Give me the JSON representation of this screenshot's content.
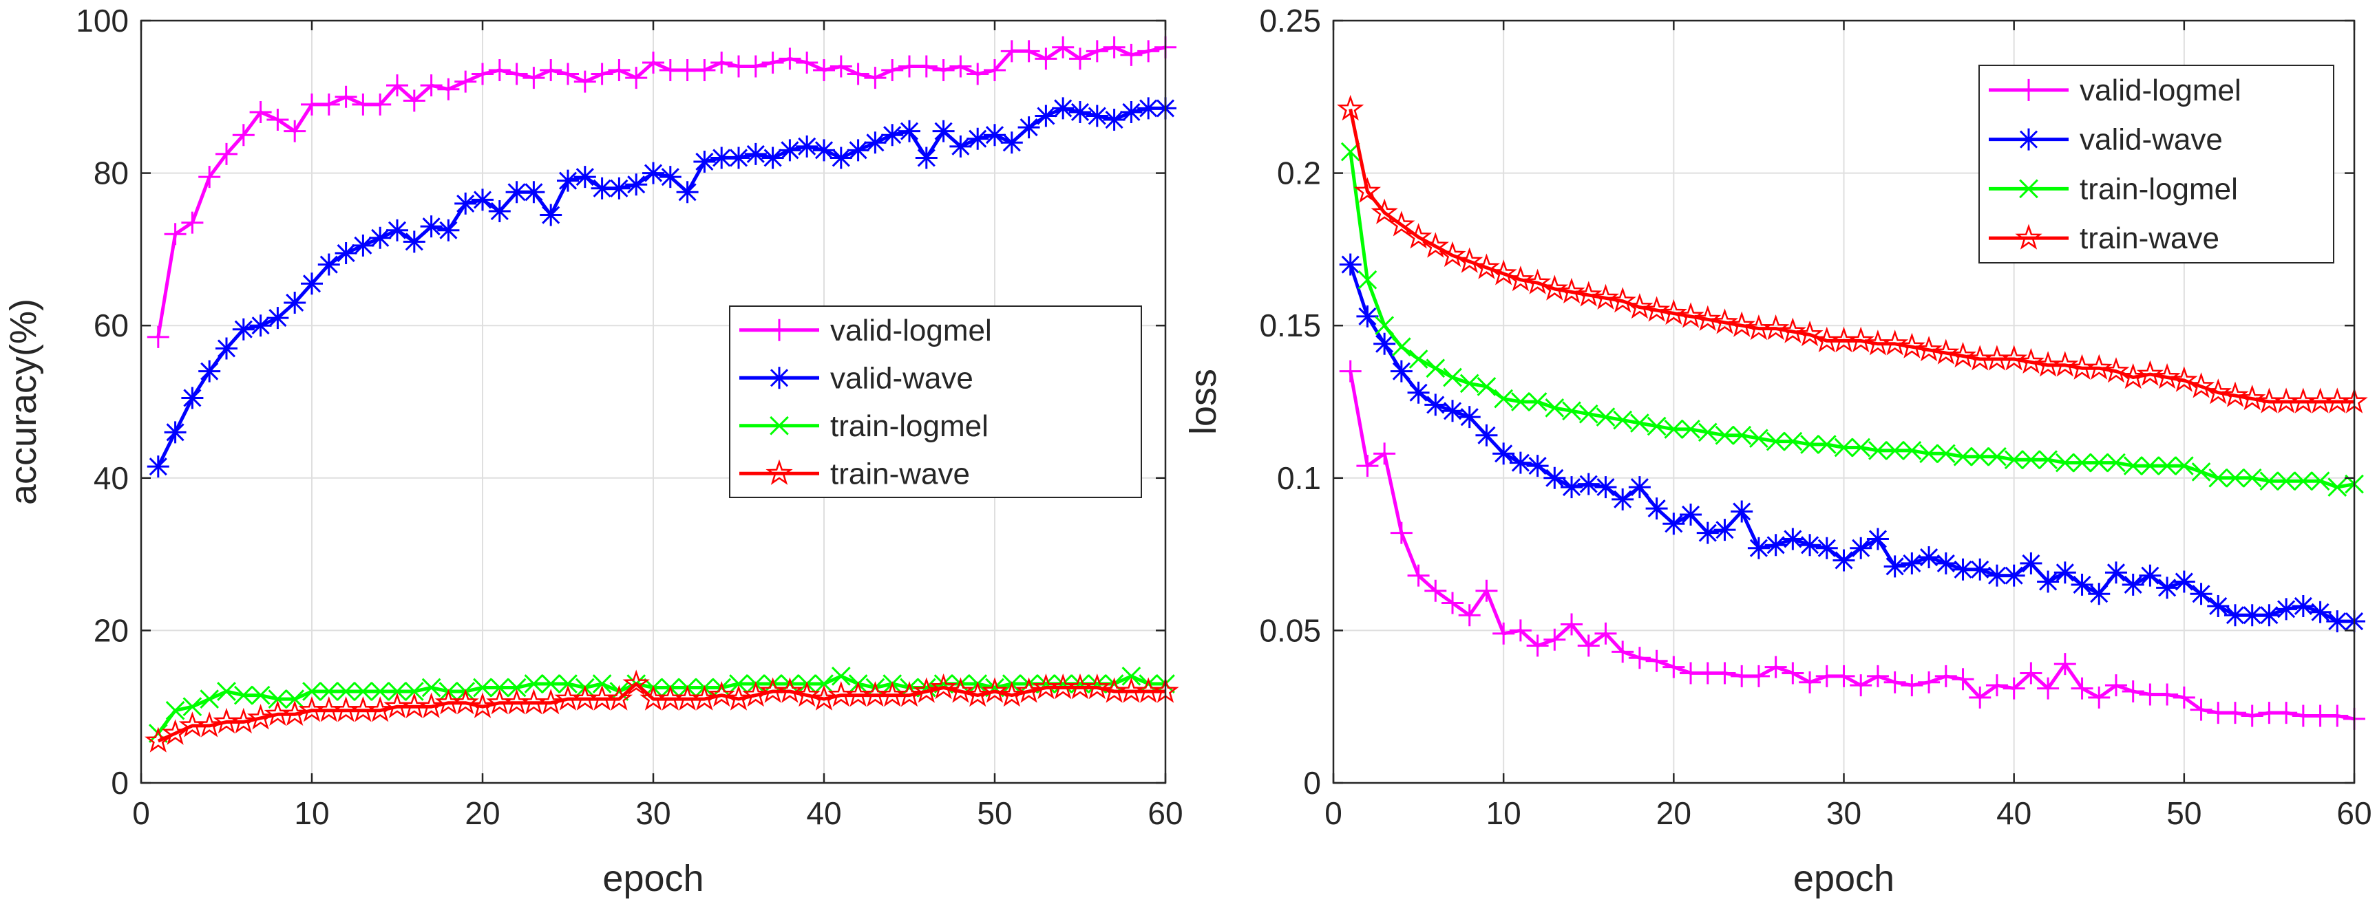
{
  "chart_data": [
    {
      "type": "line",
      "title": "",
      "xlabel": "epoch",
      "ylabel": "accuracy(%)",
      "xlim": [
        0,
        60
      ],
      "ylim": [
        0,
        100
      ],
      "xticks": [
        0,
        10,
        20,
        30,
        40,
        50,
        60
      ],
      "yticks": [
        0,
        20,
        40,
        60,
        80,
        100
      ],
      "xtick_labels": [
        "0",
        "10",
        "20",
        "30",
        "40",
        "50",
        "60"
      ],
      "ytick_labels": [
        "0",
        "20",
        "40",
        "60",
        "80",
        "100"
      ],
      "grid": true,
      "legend_position": "center-right",
      "x": [
        1,
        2,
        3,
        4,
        5,
        6,
        7,
        8,
        9,
        10,
        11,
        12,
        13,
        14,
        15,
        16,
        17,
        18,
        19,
        20,
        21,
        22,
        23,
        24,
        25,
        26,
        27,
        28,
        29,
        30,
        31,
        32,
        33,
        34,
        35,
        36,
        37,
        38,
        39,
        40,
        41,
        42,
        43,
        44,
        45,
        46,
        47,
        48,
        49,
        50,
        51,
        52,
        53,
        54,
        55,
        56,
        57,
        58,
        59,
        60
      ],
      "series": [
        {
          "name": "valid-logmel",
          "color": "#ff00ff",
          "marker": "plus",
          "values": [
            58.5,
            72,
            73.5,
            79.5,
            82.5,
            85,
            88,
            87,
            85.5,
            89,
            89,
            90,
            89,
            89,
            91.5,
            89.5,
            91.5,
            91,
            92,
            93,
            93.5,
            93,
            92.5,
            93.5,
            93,
            92,
            93,
            93.5,
            92.5,
            94.5,
            93.5,
            93.5,
            93.5,
            94.5,
            94,
            94,
            94.5,
            95,
            94.5,
            93.5,
            94,
            93,
            92.5,
            93.5,
            94,
            94,
            93.5,
            94,
            93,
            93.5,
            96,
            96,
            95,
            96.5,
            95,
            96,
            96.5,
            95.5,
            96,
            96.5
          ]
        },
        {
          "name": "valid-wave",
          "color": "#0000ff",
          "marker": "asterisk",
          "values": [
            41.5,
            46,
            50.5,
            54,
            57,
            59.5,
            60,
            61,
            63,
            65.5,
            68,
            69.5,
            70.5,
            71.5,
            72.5,
            71,
            73,
            72.5,
            76,
            76.5,
            75,
            77.5,
            77.5,
            74.5,
            79,
            79.5,
            78,
            78,
            78.5,
            80,
            79.5,
            77.5,
            81.5,
            82,
            82,
            82.5,
            82,
            83,
            83.5,
            83,
            82,
            83,
            84,
            85,
            85.5,
            82,
            85.5,
            83.5,
            84.5,
            85,
            84,
            86,
            87.5,
            88.5,
            88,
            87.5,
            87,
            88,
            88.5,
            88.5
          ]
        },
        {
          "name": "train-logmel",
          "color": "#00ff00",
          "marker": "cross",
          "values": [
            6.5,
            9.5,
            10,
            11,
            12,
            11.5,
            11.5,
            11,
            11,
            12,
            12,
            12,
            12,
            12,
            12,
            12,
            12.5,
            12,
            12,
            12.5,
            12.5,
            12.5,
            13,
            13,
            13,
            12.5,
            13,
            12,
            13,
            12.5,
            12.5,
            12.5,
            12.5,
            12.5,
            13,
            13,
            13,
            13,
            13,
            13,
            14,
            13,
            12.5,
            13,
            12.5,
            12.5,
            13,
            13,
            13,
            12.5,
            13,
            13,
            13,
            13,
            13,
            13,
            13,
            14,
            13,
            13
          ]
        },
        {
          "name": "train-wave",
          "color": "#ff0000",
          "marker": "pentagram",
          "values": [
            5.5,
            6.5,
            7.5,
            7.5,
            8,
            8,
            8.5,
            9,
            9,
            9.5,
            9.5,
            9.5,
            9.5,
            9.5,
            10,
            10,
            10,
            10.5,
            10.5,
            10,
            10.5,
            10.5,
            10.5,
            10.5,
            11,
            11,
            11,
            11,
            13,
            11,
            11,
            11,
            11,
            11.5,
            11,
            11.5,
            12,
            12,
            11.5,
            11,
            11.5,
            11.5,
            11.5,
            11.5,
            11.5,
            12,
            12.5,
            12,
            11.5,
            12,
            11.5,
            12,
            12.5,
            12.5,
            12.5,
            12.5,
            12,
            12,
            12,
            12
          ]
        }
      ]
    },
    {
      "type": "line",
      "title": "",
      "xlabel": "epoch",
      "ylabel": "loss",
      "xlim": [
        0,
        60
      ],
      "ylim": [
        0,
        0.25
      ],
      "xticks": [
        0,
        10,
        20,
        30,
        40,
        50,
        60
      ],
      "yticks": [
        0,
        0.05,
        0.1,
        0.15,
        0.2,
        0.25
      ],
      "xtick_labels": [
        "0",
        "10",
        "20",
        "30",
        "40",
        "50",
        "60"
      ],
      "ytick_labels": [
        "0",
        "0.05",
        "0.1",
        "0.15",
        "0.2",
        "0.25"
      ],
      "grid": true,
      "legend_position": "top-right",
      "x": [
        1,
        2,
        3,
        4,
        5,
        6,
        7,
        8,
        9,
        10,
        11,
        12,
        13,
        14,
        15,
        16,
        17,
        18,
        19,
        20,
        21,
        22,
        23,
        24,
        25,
        26,
        27,
        28,
        29,
        30,
        31,
        32,
        33,
        34,
        35,
        36,
        37,
        38,
        39,
        40,
        41,
        42,
        43,
        44,
        45,
        46,
        47,
        48,
        49,
        50,
        51,
        52,
        53,
        54,
        55,
        56,
        57,
        58,
        59,
        60
      ],
      "series": [
        {
          "name": "valid-logmel",
          "color": "#ff00ff",
          "marker": "plus",
          "values": [
            0.135,
            0.104,
            0.108,
            0.082,
            0.068,
            0.063,
            0.059,
            0.055,
            0.063,
            0.049,
            0.05,
            0.045,
            0.047,
            0.052,
            0.045,
            0.049,
            0.043,
            0.041,
            0.04,
            0.038,
            0.036,
            0.036,
            0.036,
            0.035,
            0.035,
            0.038,
            0.036,
            0.033,
            0.035,
            0.035,
            0.032,
            0.035,
            0.033,
            0.032,
            0.033,
            0.035,
            0.034,
            0.028,
            0.032,
            0.031,
            0.036,
            0.031,
            0.039,
            0.031,
            0.028,
            0.032,
            0.03,
            0.029,
            0.029,
            0.028,
            0.024,
            0.023,
            0.023,
            0.022,
            0.023,
            0.023,
            0.022,
            0.022,
            0.022,
            0.021
          ]
        },
        {
          "name": "valid-wave",
          "color": "#0000ff",
          "marker": "asterisk",
          "values": [
            0.17,
            0.153,
            0.144,
            0.135,
            0.128,
            0.124,
            0.122,
            0.12,
            0.114,
            0.108,
            0.105,
            0.104,
            0.1,
            0.097,
            0.098,
            0.097,
            0.093,
            0.097,
            0.09,
            0.085,
            0.088,
            0.082,
            0.083,
            0.089,
            0.077,
            0.078,
            0.08,
            0.078,
            0.077,
            0.073,
            0.077,
            0.08,
            0.071,
            0.072,
            0.074,
            0.072,
            0.07,
            0.07,
            0.068,
            0.068,
            0.072,
            0.066,
            0.069,
            0.065,
            0.062,
            0.069,
            0.065,
            0.068,
            0.064,
            0.066,
            0.062,
            0.058,
            0.055,
            0.055,
            0.055,
            0.057,
            0.058,
            0.056,
            0.053,
            0.053
          ]
        },
        {
          "name": "train-logmel",
          "color": "#00ff00",
          "marker": "cross",
          "values": [
            0.207,
            0.165,
            0.15,
            0.143,
            0.139,
            0.136,
            0.133,
            0.131,
            0.13,
            0.126,
            0.125,
            0.125,
            0.123,
            0.122,
            0.121,
            0.12,
            0.119,
            0.118,
            0.117,
            0.116,
            0.116,
            0.115,
            0.114,
            0.114,
            0.113,
            0.112,
            0.112,
            0.111,
            0.111,
            0.11,
            0.11,
            0.109,
            0.109,
            0.109,
            0.108,
            0.108,
            0.107,
            0.107,
            0.107,
            0.106,
            0.106,
            0.106,
            0.105,
            0.105,
            0.105,
            0.105,
            0.104,
            0.104,
            0.104,
            0.104,
            0.102,
            0.1,
            0.1,
            0.1,
            0.099,
            0.099,
            0.099,
            0.099,
            0.097,
            0.098
          ]
        },
        {
          "name": "train-wave",
          "color": "#ff0000",
          "marker": "pentagram",
          "values": [
            0.221,
            0.194,
            0.187,
            0.183,
            0.179,
            0.176,
            0.173,
            0.171,
            0.169,
            0.167,
            0.165,
            0.164,
            0.162,
            0.161,
            0.16,
            0.159,
            0.158,
            0.156,
            0.155,
            0.154,
            0.153,
            0.152,
            0.151,
            0.15,
            0.149,
            0.149,
            0.148,
            0.147,
            0.145,
            0.145,
            0.145,
            0.144,
            0.144,
            0.143,
            0.142,
            0.141,
            0.14,
            0.139,
            0.139,
            0.139,
            0.138,
            0.137,
            0.137,
            0.136,
            0.136,
            0.135,
            0.133,
            0.134,
            0.133,
            0.132,
            0.13,
            0.128,
            0.127,
            0.126,
            0.125,
            0.125,
            0.125,
            0.125,
            0.125,
            0.125
          ]
        }
      ]
    }
  ]
}
